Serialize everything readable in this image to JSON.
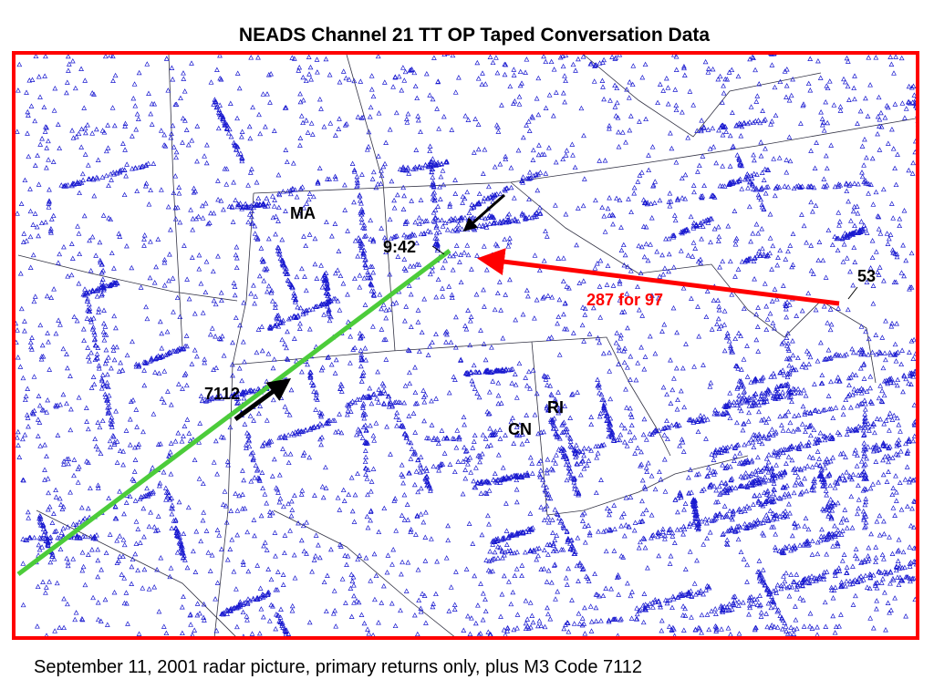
{
  "title": "NEADS Channel 21 TT OP Taped Conversation Data",
  "labels": {
    "ma": "MA",
    "time": "9:42",
    "track53": "53",
    "heading": "287 for 97",
    "code": "7112",
    "ri": "RI",
    "cn": "CN"
  },
  "caption": "September 11, 2001 radar picture, primary returns only, plus M3 Code 7112"
}
